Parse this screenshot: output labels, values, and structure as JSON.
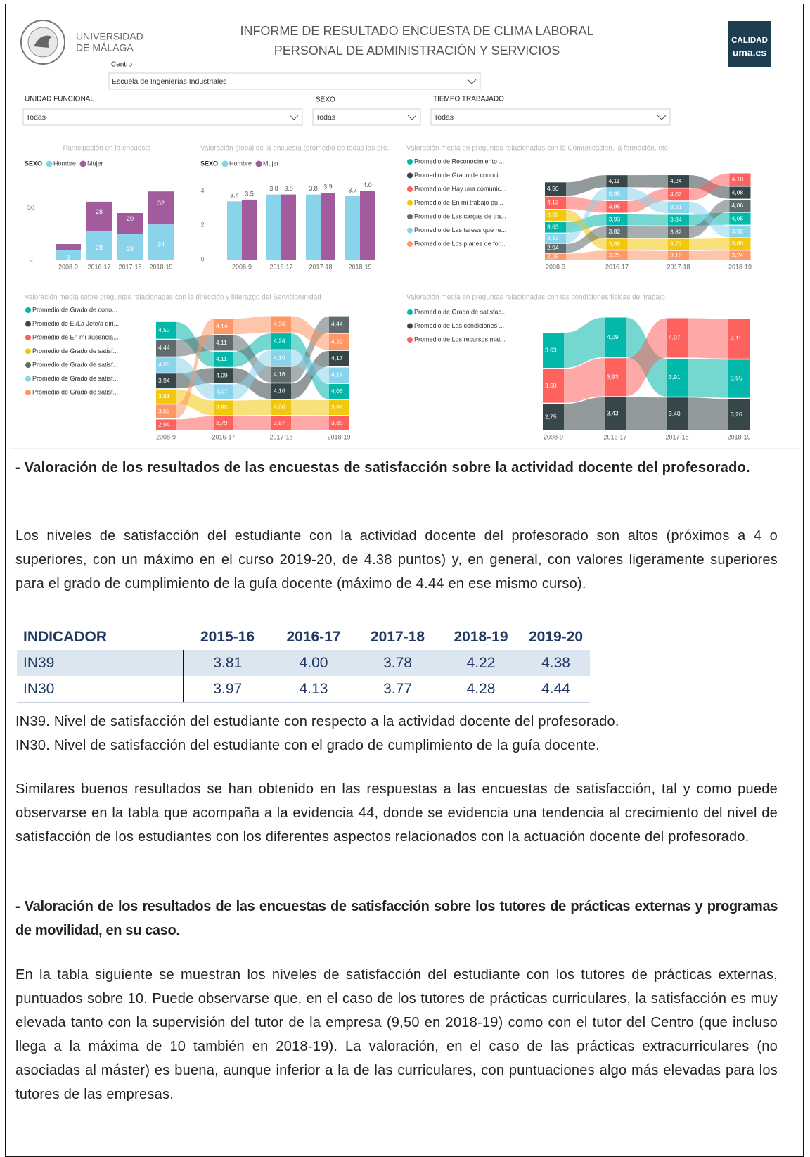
{
  "header": {
    "university": [
      "UNIVERSIDAD",
      "DE MÁLAGA"
    ],
    "title": [
      "INFORME DE RESULTADO ENCUESTA DE CLIMA LABORAL",
      "PERSONAL DE ADMINISTRACIÓN Y SERVICIOS"
    ],
    "badge": [
      "CALIDAD",
      "uma.es"
    ]
  },
  "filters": [
    {
      "label": "Centro",
      "value": "Escuela de Ingenierías Industriales"
    },
    {
      "label": "UNIDAD FUNCIONAL",
      "value": "Todas"
    },
    {
      "label": "SEXO",
      "value": "Todas"
    },
    {
      "label": "TIEMPO TRABAJADO",
      "value": "Todas"
    }
  ],
  "chart_data": [
    {
      "type": "bar",
      "stacked": true,
      "title": "Participación en la encuesta",
      "legend_title": "SEXO",
      "categories": [
        "2008-9",
        "2016-17",
        "2017-18",
        "2018-19"
      ],
      "series": [
        {
          "name": "Hombre",
          "color": "#8ad4eb",
          "values": [
            9,
            28,
            25,
            34
          ]
        },
        {
          "name": "Mujer",
          "color": "#a25c9e",
          "values": [
            6,
            28,
            20,
            32
          ],
          "value_labels": [
            null,
            "28",
            "20",
            "32"
          ]
        }
      ],
      "ylim": [
        0,
        75
      ],
      "yticks": [
        0,
        50
      ]
    },
    {
      "type": "bar",
      "stacked": false,
      "title": "Valoración global de la encuesta (promedio de todas las pre...",
      "legend_title": "SEXO",
      "categories": [
        "2008-9",
        "2016-17",
        "2017-18",
        "2018-19"
      ],
      "series": [
        {
          "name": "Hombre",
          "color": "#8ad4eb",
          "values": [
            3.4,
            3.8,
            3.8,
            3.7
          ]
        },
        {
          "name": "Mujer",
          "color": "#a25c9e",
          "values": [
            3.5,
            3.8,
            3.9,
            4.0
          ],
          "value_labels": [
            "3.5",
            "3.8",
            "3.9",
            "4.0"
          ]
        }
      ],
      "ylim": [
        0,
        4.4
      ],
      "yticks": [
        0,
        2,
        4
      ]
    },
    {
      "type": "ribbon",
      "title": "Valoración media en preguntas relacionadas con la Comunicacion, la formación, etc.",
      "categories": [
        "2008-9",
        "2016-17",
        "2017-18",
        "2018-19"
      ],
      "series": [
        {
          "name": "Promedio de Reconocimiento ...",
          "color": "#01b8aa",
          "values": [
            3.63,
            3.93,
            3.84,
            4.05
          ],
          "value_labels": [
            "3,63",
            "3,93",
            "3,84",
            "4,05"
          ]
        },
        {
          "name": "Promedio de Grado de conoci...",
          "color": "#374649",
          "values": [
            4.5,
            4.11,
            4.24,
            4.08
          ],
          "value_labels": [
            "4,50",
            "4,11",
            "4,24",
            "4,08"
          ]
        },
        {
          "name": "Promedio de Hay una comunic...",
          "color": "#fd625e",
          "values": [
            4.13,
            3.95,
            4.02,
            4.18
          ],
          "value_labels": [
            "4,13",
            "3,95",
            "4,02",
            "4,18"
          ]
        },
        {
          "name": "Promedio de En mi trabajo pu...",
          "color": "#f2c80f",
          "values": [
            3.69,
            3.68,
            3.73,
            3.8
          ],
          "value_labels": [
            "3,69",
            "3,68",
            "3,73",
            "3,80"
          ]
        },
        {
          "name": "Promedio de Las cargas de tra...",
          "color": "#5f6b6d",
          "values": [
            2.94,
            3.82,
            3.82,
            4.06
          ],
          "value_labels": [
            "2,94",
            "3,82",
            "3,82",
            "4,06"
          ]
        },
        {
          "name": "Promedio de Las tareas que re...",
          "color": "#8ad4eb",
          "values": [
            3.13,
            3.95,
            3.91,
            3.92
          ],
          "value_labels": [
            "3,13",
            "3,95",
            "3,91",
            "3,92"
          ]
        },
        {
          "name": "Promedio de Los planes de for...",
          "color": "#fe9666",
          "values": [
            2.25,
            3.25,
            3.16,
            3.24
          ],
          "value_labels": [
            "2,25",
            "3,25",
            "3,16",
            "3,24"
          ]
        }
      ]
    },
    {
      "type": "ribbon",
      "title": "Valoración  media sobre preguntas relacionadas con la dirección y liderazgo del Servicio/unidad",
      "categories": [
        "2008-9",
        "2016-17",
        "2017-18",
        "2018-19"
      ],
      "series": [
        {
          "name": "Promedio de Grado de cono...",
          "color": "#01b8aa",
          "values": [
            4.5,
            4.11,
            4.24,
            4.06
          ],
          "value_labels": [
            "4,50",
            "4,11",
            "4,24",
            "4,06"
          ]
        },
        {
          "name": "Promedio de El/La Jefe/a diri...",
          "color": "#374649",
          "values": [
            3.94,
            4.09,
            4.16,
            4.17
          ],
          "value_labels": [
            "3,94",
            "4,09",
            "4,16",
            "4,17"
          ]
        },
        {
          "name": "Promedio de En mi ausencia...",
          "color": "#fd625e",
          "values": [
            2.94,
            3.79,
            3.87,
            3.85
          ],
          "value_labels": [
            "2,94",
            "3,79",
            "3,87",
            "3,85"
          ]
        },
        {
          "name": "Promedio de Grado de satisf...",
          "color": "#f2c80f",
          "values": [
            3.81,
            3.95,
            4.0,
            3.98
          ],
          "value_labels": [
            "3,81",
            "3,95",
            "4,00",
            "3,98"
          ]
        },
        {
          "name": "Promedio de Grado de satisf...",
          "color": "#5f6b6d",
          "values": [
            4.44,
            4.11,
            4.16,
            4.44
          ],
          "value_labels": [
            "4,44",
            "4,11",
            "4,16",
            "4,44"
          ]
        },
        {
          "name": "Promedio de Grado de satisf...",
          "color": "#8ad4eb",
          "values": [
            4.06,
            4.07,
            4.16,
            4.14
          ],
          "value_labels": [
            "4,06",
            "4,07",
            "4,16",
            "4,14"
          ]
        },
        {
          "name": "Promedio de Grado de satisf...",
          "color": "#fe9666",
          "values": [
            3.69,
            4.14,
            4.36,
            4.29
          ],
          "value_labels": [
            "3,69",
            "4,14",
            "4,36",
            "4,29"
          ]
        }
      ]
    },
    {
      "type": "ribbon",
      "title": "Valoración media en preguntas relacionadas con las condiciones físicas del trabajo",
      "categories": [
        "2008-9",
        "2016-17",
        "2017-18",
        "2018-19"
      ],
      "series": [
        {
          "name": "Promedio de Grado de satisfac...",
          "color": "#01b8aa",
          "values": [
            3.63,
            4.09,
            3.91,
            3.95
          ],
          "value_labels": [
            "3,63",
            "4,09",
            "3,91",
            "3,95"
          ]
        },
        {
          "name": "Promedio de Las condiciones ...",
          "color": "#374649",
          "values": [
            2.75,
            3.43,
            3.4,
            3.26
          ],
          "value_labels": [
            "2,75",
            "3,43",
            "3,40",
            "3,26"
          ]
        },
        {
          "name": "Promedio de Los recursos mat...",
          "color": "#fd625e",
          "values": [
            3.5,
            3.93,
            4.07,
            4.11
          ],
          "value_labels": [
            "3,50",
            "3,93",
            "4,07",
            "4,11"
          ]
        }
      ]
    }
  ],
  "body": {
    "heading1": "- Valoración de los resultados de las encuestas de satisfacción sobre la actividad docente del profesorado.",
    "para1": "Los niveles de satisfacción del estudiante con la actividad docente del profesorado son altos (próximos a 4 o superiores, con un máximo en el curso 2019-20, de 4.38 puntos) y, en general, con valores ligeramente superiores para el grado de cumplimiento de la guía docente (máximo de 4.44 en ese mismo curso).",
    "table": {
      "header": [
        "INDICADOR",
        "2015-16",
        "2016-17",
        "2017-18",
        "2018-19",
        "2019-20"
      ],
      "rows": [
        [
          "IN39",
          "3.81",
          "4.00",
          "3.78",
          "4.22",
          "4.38"
        ],
        [
          "IN30",
          "3.97",
          "4.13",
          "3.77",
          "4.28",
          "4.44"
        ]
      ]
    },
    "notes": [
      "IN39. Nivel de satisfacción del estudiante con respecto a la actividad docente del profesorado.",
      "IN30. Nivel de satisfacción del estudiante con el grado de cumplimiento de la guía docente."
    ],
    "para2": "Similares buenos resultados se han obtenido en las respuestas a las encuestas de satisfacción, tal y como puede observarse en la tabla que acompaña a la evidencia 44, donde se evidencia una tendencia al crecimiento del nivel de satisfacción de los estudiantes con los diferentes aspectos relacionados con la actuación docente del profesorado.",
    "heading2": "- Valoración de los resultados de las encuestas de satisfacción sobre los tutores de prácticas externas y programas de movilidad, en su caso.",
    "para3": "En la tabla siguiente se muestran los niveles de satisfacción del estudiante con los tutores de prácticas externas, puntuados sobre 10. Puede observarse que, en el caso de los tutores de prácticas curriculares, la satisfacción es muy elevada tanto con la supervisión del tutor de la empresa (9,50 en 2018-19) como con el tutor del Centro (que incluso llega a la máxima de 10 también en 2018-19). La valoración, en el caso de las prácticas extracurriculares (no asociadas al máster) es buena, aunque inferior a la de las curriculares, con puntuaciones algo más elevadas para los tutores de las empresas."
  }
}
